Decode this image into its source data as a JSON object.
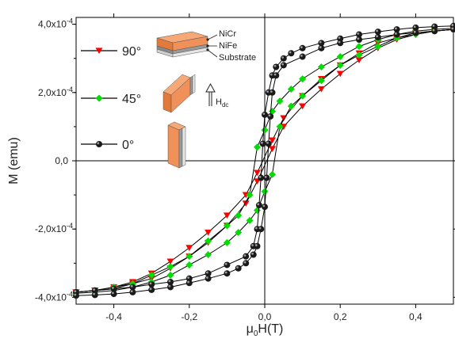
{
  "chart_data": {
    "type": "scatter",
    "title": "",
    "xlabel": {
      "prefix": "μ",
      "sub": "0",
      "suffix": "H(T)"
    },
    "ylabel": "M (emu)",
    "xlim": [
      -0.5,
      0.5
    ],
    "ylim": [
      -0.00042,
      0.00042
    ],
    "x_ticks": [
      {
        "value": -0.4,
        "label": "-0,4"
      },
      {
        "value": -0.2,
        "label": "-0,2"
      },
      {
        "value": 0.0,
        "label": "0,0"
      },
      {
        "value": 0.2,
        "label": "0,2"
      },
      {
        "value": 0.4,
        "label": "0,4"
      }
    ],
    "y_ticks": [
      {
        "value": 0.0004,
        "label": "4,0x10",
        "exp": "-4"
      },
      {
        "value": 0.0002,
        "label": "2,0x10",
        "exp": "-4"
      },
      {
        "value": 0.0,
        "label": "0,0",
        "exp": ""
      },
      {
        "value": -0.0002,
        "label": "-2,0x10",
        "exp": "-4"
      },
      {
        "value": -0.0004,
        "label": "-4,0x10",
        "exp": "-4"
      }
    ],
    "grid": false,
    "zero_lines": true,
    "series": [
      {
        "name": "90°",
        "color": "#ff0000",
        "marker": "triangle-down",
        "descending": [
          [
            0.5,
            0.000385
          ],
          [
            0.45,
            0.00038
          ],
          [
            0.4,
            0.000375
          ],
          [
            0.35,
            0.00036
          ],
          [
            0.3,
            0.000345
          ],
          [
            0.25,
            0.000315
          ],
          [
            0.2,
            0.00028
          ],
          [
            0.15,
            0.00024
          ],
          [
            0.1,
            0.00019
          ],
          [
            0.05,
            0.000125
          ],
          [
            0.02,
            6e-05
          ],
          [
            -0.02,
            -3.5e-05
          ],
          [
            -0.05,
            -0.0001
          ],
          [
            -0.1,
            -0.00016
          ],
          [
            -0.15,
            -0.00021
          ],
          [
            -0.2,
            -0.000255
          ],
          [
            -0.25,
            -0.000295
          ],
          [
            -0.3,
            -0.00033
          ],
          [
            -0.35,
            -0.000355
          ],
          [
            -0.4,
            -0.00037
          ],
          [
            -0.45,
            -0.00038
          ],
          [
            -0.5,
            -0.000385
          ]
        ],
        "ascending": [
          [
            -0.5,
            -0.000385
          ],
          [
            -0.45,
            -0.00038
          ],
          [
            -0.4,
            -0.000375
          ],
          [
            -0.35,
            -0.00036
          ],
          [
            -0.3,
            -0.000345
          ],
          [
            -0.25,
            -0.000315
          ],
          [
            -0.2,
            -0.00028
          ],
          [
            -0.15,
            -0.00024
          ],
          [
            -0.1,
            -0.00019
          ],
          [
            -0.05,
            -0.000125
          ],
          [
            -0.02,
            -6e-05
          ],
          [
            0.02,
            3.5e-05
          ],
          [
            0.05,
            0.0001
          ],
          [
            0.1,
            0.00016
          ],
          [
            0.15,
            0.00021
          ],
          [
            0.2,
            0.000255
          ],
          [
            0.25,
            0.000295
          ],
          [
            0.3,
            0.00033
          ],
          [
            0.35,
            0.000355
          ],
          [
            0.4,
            0.00037
          ],
          [
            0.45,
            0.00038
          ],
          [
            0.5,
            0.000385
          ]
        ]
      },
      {
        "name": "45°",
        "color": "#00dd00",
        "marker": "diamond",
        "descending": [
          [
            0.5,
            0.000388
          ],
          [
            0.45,
            0.000385
          ],
          [
            0.4,
            0.00038
          ],
          [
            0.35,
            0.00037
          ],
          [
            0.3,
            0.000355
          ],
          [
            0.25,
            0.000335
          ],
          [
            0.2,
            0.000305
          ],
          [
            0.15,
            0.000275
          ],
          [
            0.1,
            0.00024
          ],
          [
            0.07,
            0.00021
          ],
          [
            0.04,
            0.000175
          ],
          [
            0.02,
            0.000145
          ],
          [
            0.0,
            9e-05
          ],
          [
            -0.02,
            4e-05
          ],
          [
            -0.04,
            -0.0001
          ],
          [
            -0.07,
            -0.00016
          ],
          [
            -0.1,
            -0.00019
          ],
          [
            -0.15,
            -0.000235
          ],
          [
            -0.2,
            -0.00028
          ],
          [
            -0.25,
            -0.00031
          ],
          [
            -0.3,
            -0.000335
          ],
          [
            -0.35,
            -0.00036
          ],
          [
            -0.4,
            -0.00037
          ],
          [
            -0.45,
            -0.00038
          ],
          [
            -0.5,
            -0.000385
          ]
        ],
        "ascending": [
          [
            -0.5,
            -0.000388
          ],
          [
            -0.45,
            -0.000385
          ],
          [
            -0.4,
            -0.00038
          ],
          [
            -0.35,
            -0.00037
          ],
          [
            -0.3,
            -0.000355
          ],
          [
            -0.25,
            -0.000335
          ],
          [
            -0.2,
            -0.000305
          ],
          [
            -0.15,
            -0.000275
          ],
          [
            -0.1,
            -0.00024
          ],
          [
            -0.07,
            -0.00021
          ],
          [
            -0.04,
            -0.000175
          ],
          [
            -0.02,
            -0.000145
          ],
          [
            0.0,
            -9e-05
          ],
          [
            0.02,
            -4e-05
          ],
          [
            0.04,
            0.0001
          ],
          [
            0.07,
            0.00016
          ],
          [
            0.1,
            0.00019
          ],
          [
            0.15,
            0.000235
          ],
          [
            0.2,
            0.00028
          ],
          [
            0.25,
            0.00031
          ],
          [
            0.3,
            0.000335
          ],
          [
            0.35,
            0.00036
          ],
          [
            0.4,
            0.00037
          ],
          [
            0.45,
            0.00038
          ],
          [
            0.5,
            0.000385
          ]
        ]
      },
      {
        "name": "0°",
        "color": "#111111",
        "marker": "circle",
        "descending": [
          [
            0.5,
            0.000395
          ],
          [
            0.45,
            0.000393
          ],
          [
            0.4,
            0.00039
          ],
          [
            0.35,
            0.000385
          ],
          [
            0.3,
            0.000378
          ],
          [
            0.25,
            0.00037
          ],
          [
            0.2,
            0.000358
          ],
          [
            0.15,
            0.000345
          ],
          [
            0.1,
            0.00033
          ],
          [
            0.07,
            0.000315
          ],
          [
            0.05,
            0.0003
          ],
          [
            0.03,
            0.000275
          ],
          [
            0.02,
            0.00025
          ],
          [
            0.01,
            0.0002
          ],
          [
            0.0,
            0.000135
          ],
          [
            -0.005,
            5e-05
          ],
          [
            -0.01,
            -5e-05
          ],
          [
            -0.015,
            -0.00013
          ],
          [
            -0.02,
            -0.0002
          ],
          [
            -0.03,
            -0.00025
          ],
          [
            -0.05,
            -0.00028
          ],
          [
            -0.1,
            -0.000305
          ],
          [
            -0.15,
            -0.00033
          ],
          [
            -0.2,
            -0.000345
          ],
          [
            -0.25,
            -0.000355
          ],
          [
            -0.3,
            -0.000362
          ],
          [
            -0.35,
            -0.00037
          ],
          [
            -0.4,
            -0.000375
          ],
          [
            -0.45,
            -0.00038
          ],
          [
            -0.5,
            -0.000385
          ]
        ],
        "ascending": [
          [
            -0.5,
            -0.000395
          ],
          [
            -0.45,
            -0.000393
          ],
          [
            -0.4,
            -0.00039
          ],
          [
            -0.35,
            -0.000385
          ],
          [
            -0.3,
            -0.000378
          ],
          [
            -0.25,
            -0.00037
          ],
          [
            -0.2,
            -0.000358
          ],
          [
            -0.15,
            -0.000345
          ],
          [
            -0.1,
            -0.00033
          ],
          [
            -0.07,
            -0.000315
          ],
          [
            -0.05,
            -0.0003
          ],
          [
            -0.03,
            -0.000275
          ],
          [
            -0.02,
            -0.00025
          ],
          [
            -0.01,
            -0.0002
          ],
          [
            0.0,
            -0.000135
          ],
          [
            0.005,
            -5e-05
          ],
          [
            0.01,
            5e-05
          ],
          [
            0.015,
            0.00013
          ],
          [
            0.02,
            0.0002
          ],
          [
            0.03,
            0.00025
          ],
          [
            0.05,
            0.00028
          ],
          [
            0.1,
            0.000305
          ],
          [
            0.15,
            0.00033
          ],
          [
            0.2,
            0.000345
          ],
          [
            0.25,
            0.000355
          ],
          [
            0.3,
            0.000362
          ],
          [
            0.35,
            0.00037
          ],
          [
            0.4,
            0.000375
          ],
          [
            0.45,
            0.00038
          ],
          [
            0.5,
            0.000385
          ]
        ]
      }
    ],
    "legend_position": "top-left",
    "inset": {
      "layers": [
        "NiCr",
        "NiFe",
        "Substrate"
      ],
      "field_label": {
        "main": "H",
        "sub": "dc"
      },
      "colors": {
        "substrate": "#f0915a",
        "nife": "#9a9a9a",
        "nicr": "#dcdcdc"
      }
    }
  }
}
